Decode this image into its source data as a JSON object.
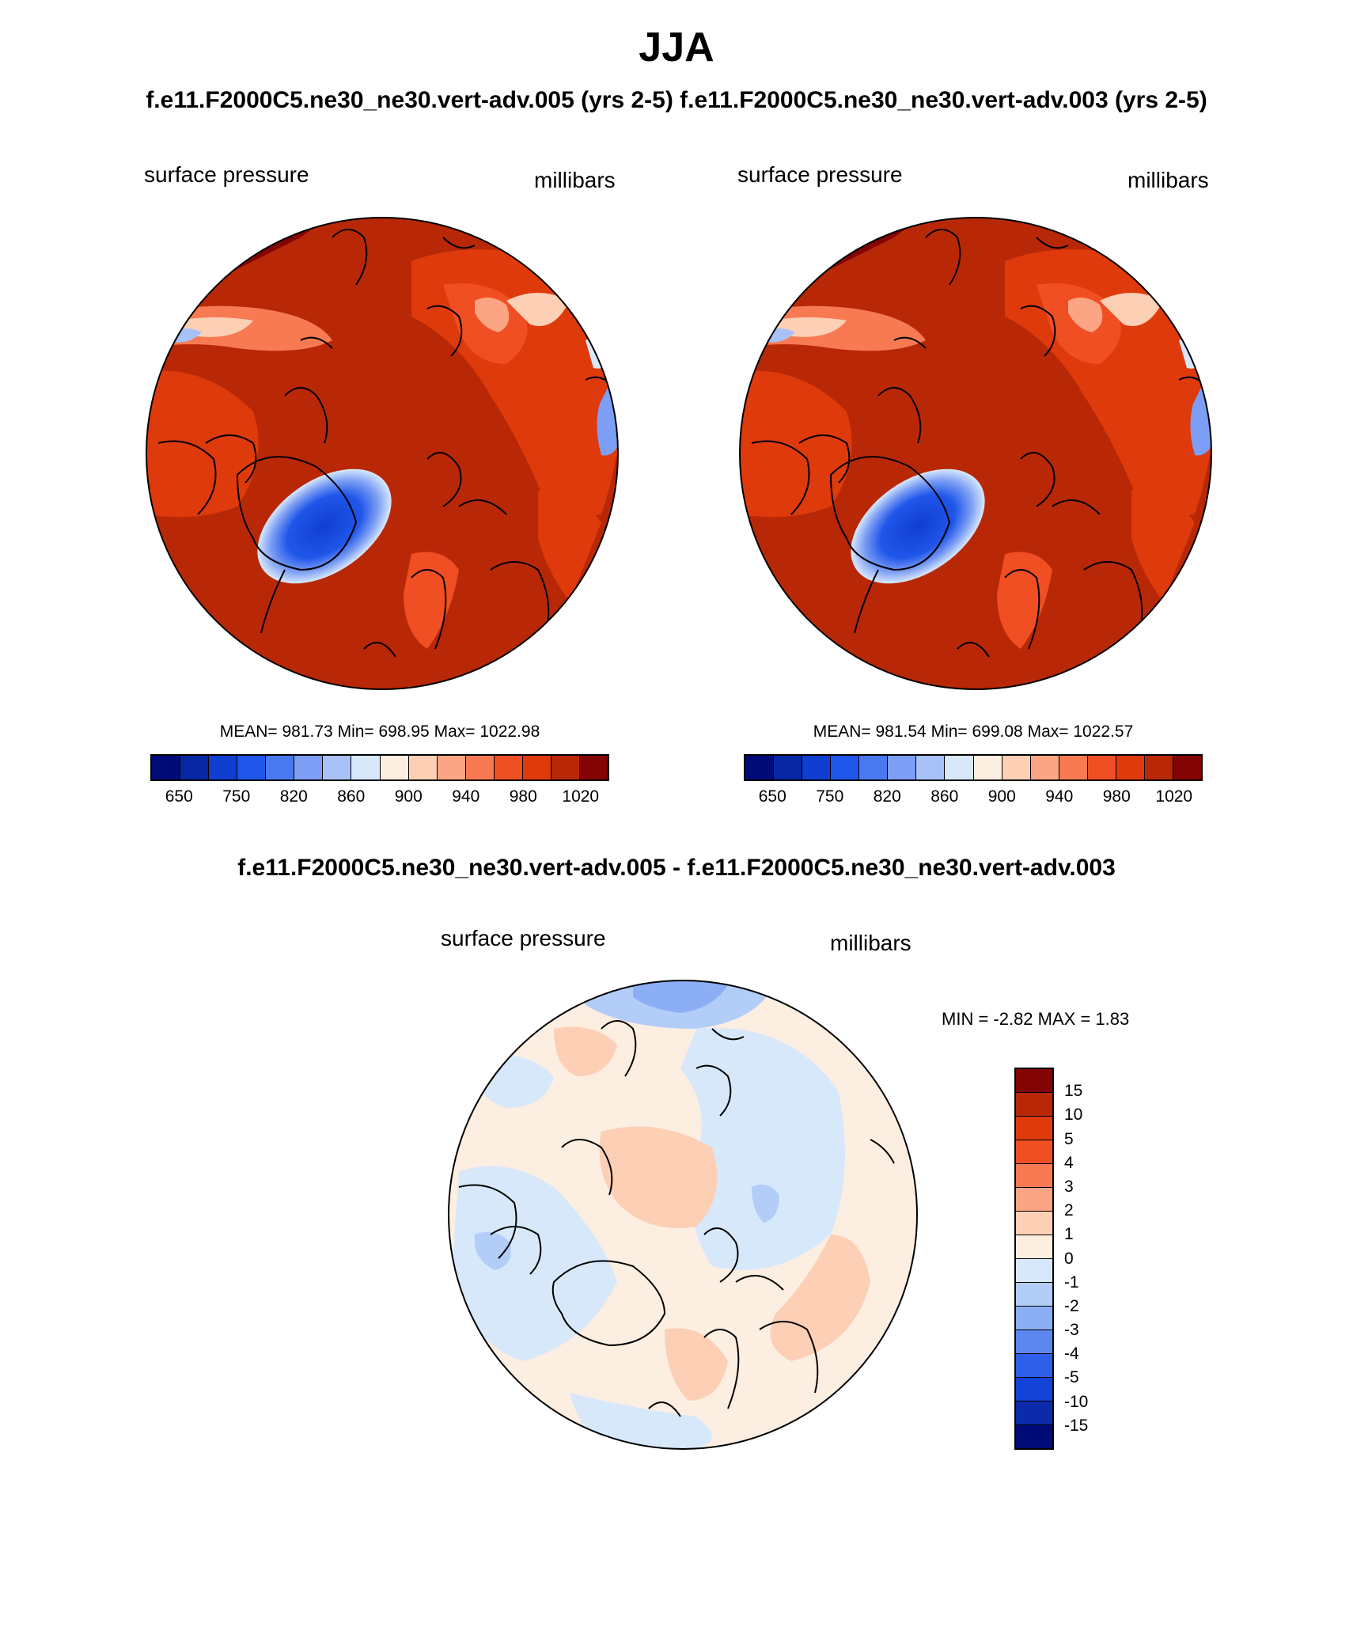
{
  "title": "JJA",
  "subtitle": "f.e11.F2000C5.ne30_ne30.vert-adv.005 (yrs 2-5)  f.e11.F2000C5.ne30_ne30.vert-adv.003 (yrs 2-5)",
  "panels": [
    {
      "variable": "surface pressure",
      "units": "millibars",
      "stats": "MEAN= 981.73  Min= 698.95  Max= 1022.98"
    },
    {
      "variable": "surface pressure",
      "units": "millibars",
      "stats": "MEAN= 981.54  Min= 699.08  Max= 1022.57"
    }
  ],
  "colorbar": {
    "colors": [
      "#000b78",
      "#0727a3",
      "#0f3ed0",
      "#1f56ea",
      "#4a78f0",
      "#7c9ef4",
      "#a8c2f7",
      "#d8e8fb",
      "#fdeee2",
      "#fdcfb5",
      "#fba585",
      "#f77a53",
      "#f04e23",
      "#de3a0b",
      "#b82807",
      "#820404"
    ],
    "ticks": [
      "650",
      "750",
      "820",
      "860",
      "900",
      "940",
      "980",
      "1020"
    ]
  },
  "diff": {
    "title": "f.e11.F2000C5.ne30_ne30.vert-adv.005 - f.e11.F2000C5.ne30_ne30.vert-adv.003",
    "variable": "surface pressure",
    "units": "millibars",
    "stats": "MIN =  -2.82 MAX =   1.83"
  },
  "diff_colorbar": {
    "colors": [
      "#820404",
      "#b82807",
      "#de3a0b",
      "#f04e23",
      "#f77a53",
      "#fba585",
      "#fdcfb5",
      "#fdeee2",
      "#d8e8fb",
      "#b2cdf8",
      "#8caef5",
      "#5c87ef",
      "#2f5eea",
      "#1342d6",
      "#0b2bab",
      "#000b78"
    ],
    "ticks": [
      "15",
      "10",
      "5",
      "4",
      "3",
      "2",
      "1",
      "0",
      "-1",
      "-2",
      "-3",
      "-4",
      "-5",
      "-10",
      "-15"
    ]
  },
  "chart_data": [
    {
      "type": "heatmap",
      "title": "surface pressure",
      "units": "millibars",
      "projection": "north polar stereographic",
      "levels": [
        650,
        750,
        820,
        860,
        900,
        940,
        980,
        1020
      ],
      "mean": 981.73,
      "min": 698.95,
      "max": 1022.98
    },
    {
      "type": "heatmap",
      "title": "surface pressure",
      "units": "millibars",
      "projection": "north polar stereographic",
      "levels": [
        650,
        750,
        820,
        860,
        900,
        940,
        980,
        1020
      ],
      "mean": 981.54,
      "min": 699.08,
      "max": 1022.57
    },
    {
      "type": "heatmap",
      "title": "surface pressure (difference)",
      "units": "millibars",
      "projection": "north polar stereographic",
      "levels": [
        15,
        10,
        5,
        4,
        3,
        2,
        1,
        0,
        -1,
        -2,
        -3,
        -4,
        -5,
        -10,
        -15
      ],
      "min": -2.82,
      "max": 1.83
    }
  ]
}
